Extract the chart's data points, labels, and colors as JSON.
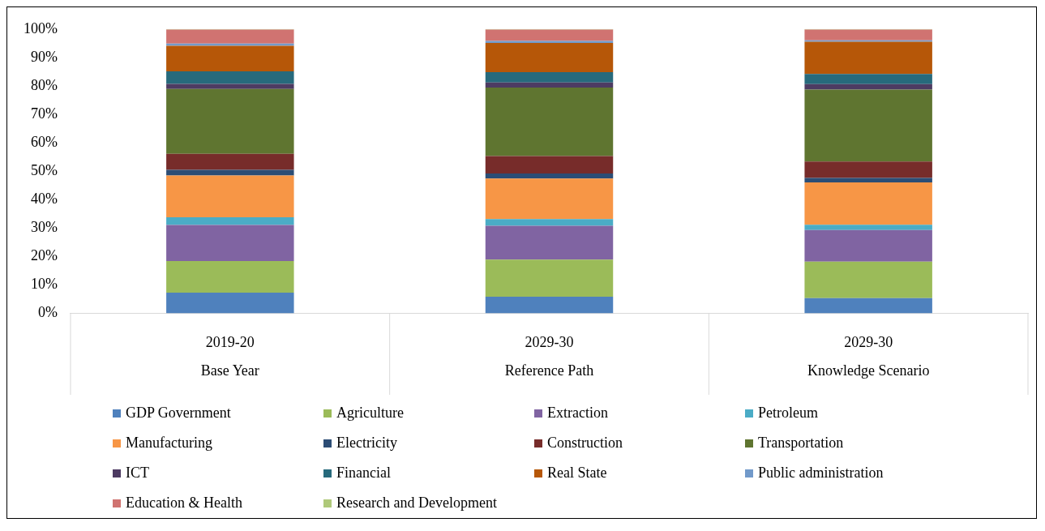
{
  "chart_data": {
    "type": "bar",
    "stacked": true,
    "categories": [
      "2019-20\nBase Year",
      "2029-30\nReference Path",
      "2029-30\nKnowledge Scenario"
    ],
    "series": [
      {
        "name": "GDP Government",
        "color": "#4f81bd",
        "values": [
          7.3,
          5.9,
          5.4
        ]
      },
      {
        "name": "Agriculture",
        "color": "#9bbb59",
        "values": [
          11.1,
          13.0,
          12.8
        ]
      },
      {
        "name": "Extraction",
        "color": "#8064a2",
        "values": [
          12.7,
          11.9,
          11.1
        ]
      },
      {
        "name": "Petroleum",
        "color": "#4bacc6",
        "values": [
          2.7,
          2.4,
          1.9
        ]
      },
      {
        "name": "Manufacturing",
        "color": "#f79646",
        "values": [
          14.7,
          14.2,
          14.9
        ]
      },
      {
        "name": "Electricity",
        "color": "#2c4d75",
        "values": [
          2.0,
          1.8,
          1.5
        ]
      },
      {
        "name": "Construction",
        "color": "#772c2a",
        "values": [
          5.6,
          6.1,
          5.8
        ]
      },
      {
        "name": "Transportation",
        "color": "#5f7530",
        "values": [
          22.8,
          24.1,
          25.3
        ]
      },
      {
        "name": "ICT",
        "color": "#4d3b62",
        "values": [
          1.8,
          1.8,
          1.9
        ]
      },
      {
        "name": "Financial",
        "color": "#276a7c",
        "values": [
          4.4,
          3.6,
          3.6
        ]
      },
      {
        "name": "Real State",
        "color": "#b65708",
        "values": [
          9.0,
          10.3,
          11.3
        ]
      },
      {
        "name": "Public administration",
        "color": "#729aca",
        "values": [
          0.8,
          0.7,
          0.5
        ]
      },
      {
        "name": "Education & Health",
        "color": "#d07371",
        "values": [
          4.9,
          4.0,
          3.8
        ]
      },
      {
        "name": "Research and Development",
        "color": "#afc97a",
        "values": [
          0.2,
          0.2,
          0.2
        ]
      }
    ],
    "ylim": [
      0,
      100
    ],
    "yticks": [
      {
        "value": 0,
        "label": "0%"
      },
      {
        "value": 10,
        "label": "10%"
      },
      {
        "value": 20,
        "label": "20%"
      },
      {
        "value": 30,
        "label": "30%"
      },
      {
        "value": 40,
        "label": "40%"
      },
      {
        "value": 50,
        "label": "50%"
      },
      {
        "value": 60,
        "label": "60%"
      },
      {
        "value": 70,
        "label": "70%"
      },
      {
        "value": 80,
        "label": "80%"
      },
      {
        "value": 90,
        "label": "90%"
      },
      {
        "value": 100,
        "label": "100%"
      }
    ],
    "grid": false,
    "legend": "bottom"
  }
}
